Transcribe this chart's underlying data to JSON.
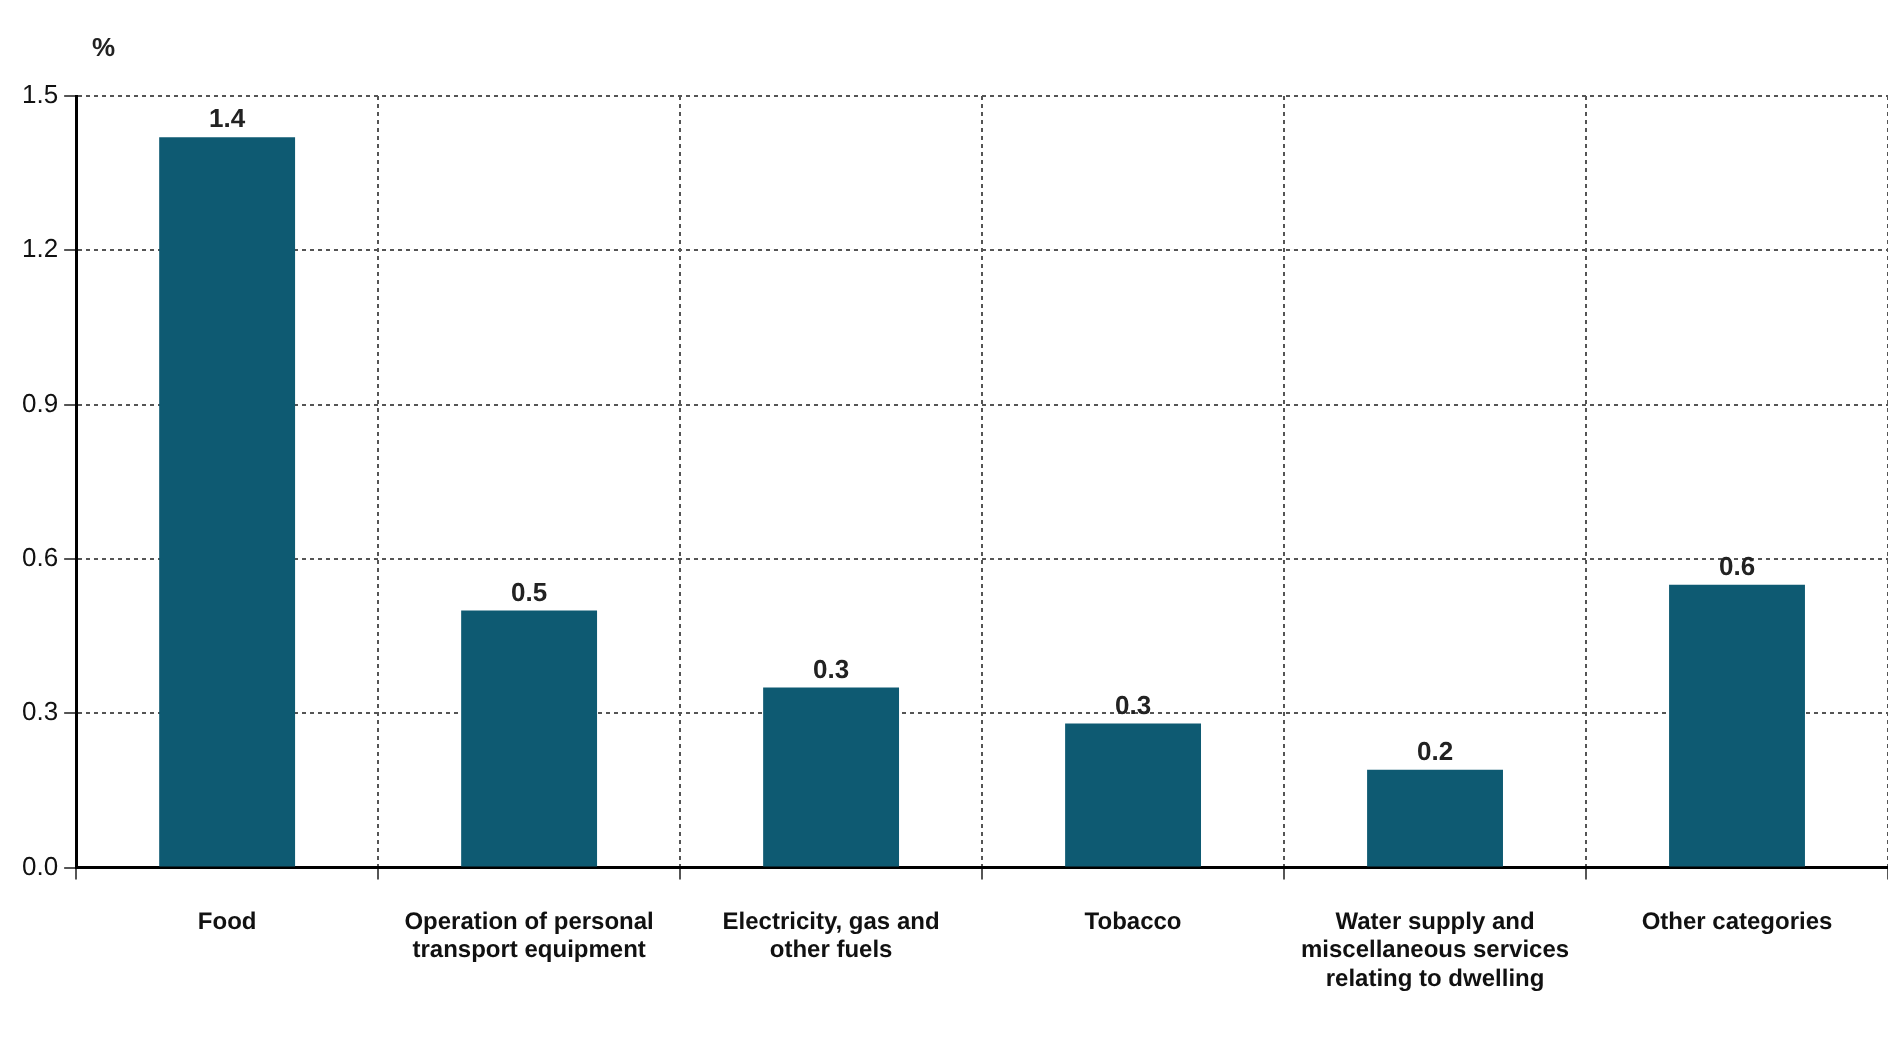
{
  "chart_data": {
    "type": "bar",
    "ylabel": "%",
    "categories": [
      "Food",
      "Operation of personal transport equipment",
      "Electricity, gas and other fuels",
      "Tobacco",
      "Water supply and miscellaneous services relating to dwelling",
      "Other categories"
    ],
    "values": [
      1.42,
      0.5,
      0.35,
      0.28,
      0.19,
      0.55
    ],
    "value_labels": [
      "1.4",
      "0.5",
      "0.3",
      "0.3",
      "0.2",
      "0.6"
    ],
    "color": "#0e5a72",
    "ylim": [
      0,
      1.5
    ],
    "yticks": [
      {
        "value": 0,
        "label": "0.0"
      },
      0.3,
      0.6,
      0.9,
      1.2,
      1.5
    ],
    "grid": true
  }
}
